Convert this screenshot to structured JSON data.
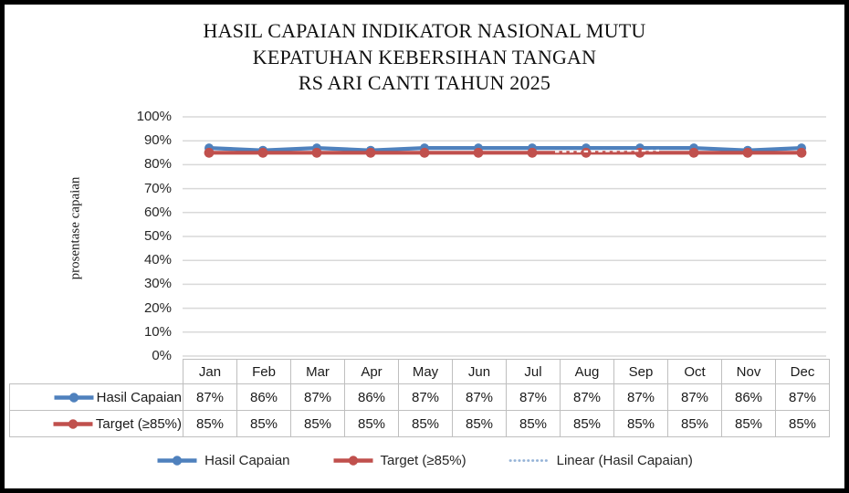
{
  "frame": {
    "background": "#ffffff",
    "border_color": "#000000"
  },
  "title": {
    "lines": [
      "HASIL CAPAIAN INDIKATOR NASIONAL MUTU",
      "KEPATUHAN KEBERSIHAN TANGAN",
      "RS ARI CANTI TAHUN 2025"
    ]
  },
  "y_axis": {
    "label": "prosentase capaian",
    "ticks": [
      "100%",
      "90%",
      "80%",
      "70%",
      "60%",
      "50%",
      "40%",
      "30%",
      "20%",
      "10%",
      "0%"
    ]
  },
  "chart_data": {
    "type": "line",
    "title": "HASIL CAPAIAN INDIKATOR NASIONAL MUTU KEPATUHAN KEBERSIHAN TANGAN RS ARI CANTI TAHUN 2025",
    "xlabel": "",
    "ylabel": "prosentase capaian",
    "ylim": [
      0,
      100
    ],
    "y_tick_step": 10,
    "y_unit": "%",
    "grid": true,
    "legend_position": "bottom",
    "categories": [
      "Jan",
      "Feb",
      "Mar",
      "Apr",
      "May",
      "Jun",
      "Jul",
      "Aug",
      "Sep",
      "Oct",
      "Nov",
      "Dec"
    ],
    "series": [
      {
        "name": "Hasil Capaian",
        "color": "#4F81BD",
        "marker": "circle",
        "line_style": "solid",
        "values": [
          87,
          86,
          87,
          86,
          87,
          87,
          87,
          87,
          87,
          87,
          86,
          87
        ]
      },
      {
        "name": "Target (≥85%)",
        "color": "#C0504D",
        "marker": "circle",
        "line_style": "solid",
        "values": [
          85,
          85,
          85,
          85,
          85,
          85,
          85,
          85,
          85,
          85,
          85,
          85
        ]
      }
    ],
    "trendline": {
      "name": "Linear (Hasil Capaian)",
      "of_series": "Hasil Capaian",
      "line_style": "dotted",
      "legend_color": "#95B3D7",
      "on_chart_color": "#FFFFFF"
    }
  },
  "legend": {
    "items": [
      {
        "label": "Hasil Capaian",
        "color": "#4F81BD",
        "line_style": "solid",
        "marker": "circle"
      },
      {
        "label": "Target (≥85%)",
        "color": "#C0504D",
        "line_style": "solid",
        "marker": "circle"
      },
      {
        "label": "Linear (Hasil Capaian)",
        "color": "#95B3D7",
        "line_style": "dotted",
        "marker": "none"
      }
    ]
  },
  "colors": {
    "gridline": "#D9D9D9",
    "table_border": "#BFBFBF",
    "text": "#262626"
  }
}
